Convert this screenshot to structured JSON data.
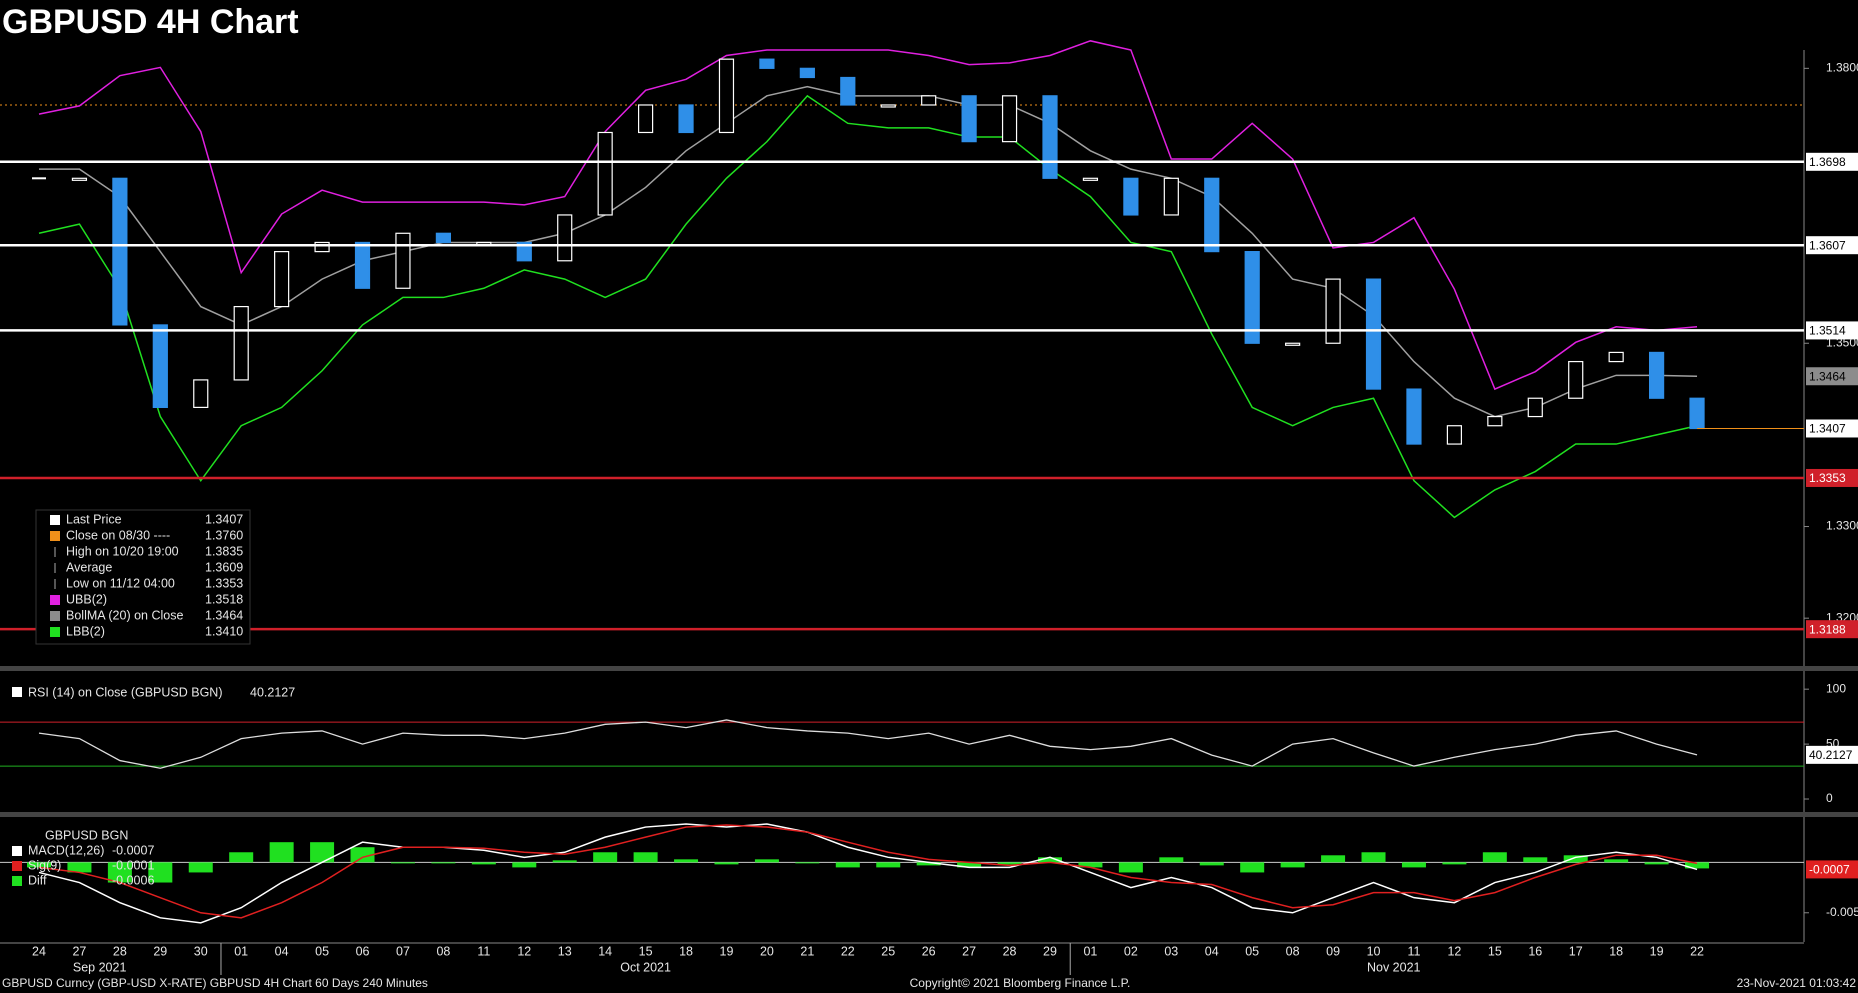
{
  "chart_data": [
    {
      "type": "candlestick",
      "title": "GBPUSD 4H Chart",
      "categories": [
        "24",
        "27",
        "28",
        "29",
        "30",
        "01",
        "04",
        "05",
        "06",
        "07",
        "08",
        "11",
        "12",
        "13",
        "14",
        "15",
        "18",
        "19",
        "20",
        "21",
        "22",
        "25",
        "26",
        "27",
        "28",
        "29",
        "01",
        "02",
        "03",
        "04",
        "05",
        "08",
        "09",
        "10",
        "11",
        "12",
        "15",
        "16",
        "17",
        "18",
        "19",
        "22"
      ],
      "values": [
        1.368,
        1.368,
        1.352,
        1.343,
        1.346,
        1.354,
        1.36,
        1.361,
        1.356,
        1.362,
        1.361,
        1.361,
        1.359,
        1.364,
        1.373,
        1.376,
        1.373,
        1.381,
        1.38,
        1.379,
        1.376,
        1.376,
        1.377,
        1.372,
        1.377,
        1.368,
        1.368,
        1.364,
        1.368,
        1.36,
        1.35,
        1.35,
        1.357,
        1.345,
        1.339,
        1.341,
        1.342,
        1.344,
        1.348,
        1.349,
        1.344,
        1.3407
      ],
      "up_color": "#ffffff",
      "down_color": "#2f8fe8",
      "bands": [
        {
          "color": "#e020e0",
          "values": [
            1.375,
            1.3759,
            1.3792,
            1.3801,
            1.3731,
            1.3577,
            1.3641,
            1.3667,
            1.3654,
            1.3654,
            1.3654,
            1.3654,
            1.3651,
            1.366,
            1.3731,
            1.3776,
            1.3788,
            1.3814,
            1.382,
            1.382,
            1.382,
            1.382,
            1.3814,
            1.3804,
            1.3806,
            1.3814,
            1.383,
            1.382,
            1.3701,
            1.3701,
            1.374,
            1.3701,
            1.3604,
            1.361,
            1.3637,
            1.3559,
            1.345,
            1.3469,
            1.3501,
            1.3518,
            1.3514,
            1.3518
          ]
        },
        {
          "color": "#a0a0a0",
          "values": [
            1.369,
            1.369,
            1.366,
            1.36,
            1.354,
            1.352,
            1.354,
            1.357,
            1.359,
            1.36,
            1.361,
            1.361,
            1.361,
            1.362,
            1.364,
            1.367,
            1.371,
            1.374,
            1.377,
            1.378,
            1.377,
            1.377,
            1.377,
            1.376,
            1.376,
            1.374,
            1.371,
            1.369,
            1.368,
            1.366,
            1.362,
            1.357,
            1.356,
            1.353,
            1.348,
            1.344,
            1.342,
            1.343,
            1.345,
            1.3465,
            1.3465,
            1.3464
          ]
        },
        {
          "color": "#20e020",
          "values": [
            1.362,
            1.363,
            1.356,
            1.342,
            1.335,
            1.341,
            1.343,
            1.347,
            1.352,
            1.355,
            1.355,
            1.356,
            1.358,
            1.357,
            1.355,
            1.357,
            1.363,
            1.368,
            1.372,
            1.377,
            1.374,
            1.3735,
            1.3735,
            1.3725,
            1.3725,
            1.369,
            1.366,
            1.361,
            1.36,
            1.351,
            1.343,
            1.341,
            1.343,
            1.344,
            1.335,
            1.331,
            1.334,
            1.336,
            1.339,
            1.339,
            1.34,
            1.341
          ]
        }
      ],
      "ylim": [
        1.315,
        1.382
      ],
      "yticks": [
        {
          "value": 1.32,
          "label": "1.3200"
        },
        {
          "value": 1.33,
          "label": "1.3300"
        },
        {
          "value": 1.35,
          "label": "1.3500"
        },
        {
          "value": 1.38,
          "label": "1.3800"
        }
      ],
      "levels": [
        {
          "value": 1.3698,
          "color": "#ffffff"
        },
        {
          "value": 1.3607,
          "color": "#ffffff"
        },
        {
          "value": 1.3514,
          "color": "#ffffff"
        },
        {
          "value": 1.3353,
          "color": "#d0202a"
        },
        {
          "value": 1.3188,
          "color": "#d0202a"
        }
      ],
      "reference_line": {
        "value": 1.376,
        "color": "#f0901a"
      },
      "markers": [
        {
          "value": 1.3464,
          "color": "#8c8c8c"
        },
        {
          "value": 1.3407,
          "color": "#ffffff"
        }
      ],
      "legend": [
        {
          "label": "Last Price",
          "value": "1.3407",
          "color": "#ffffff"
        },
        {
          "label": "Close on 08/30 ----",
          "value": "1.3760",
          "color": "#f0901a"
        },
        {
          "label": "High on 10/20 19:00",
          "value": "1.3835"
        },
        {
          "label": "Average",
          "value": "1.3609"
        },
        {
          "label": "Low on 11/12 04:00",
          "value": "1.3353"
        },
        {
          "label": "UBB(2)",
          "value": "1.3518",
          "color": "#e020e0"
        },
        {
          "label": "BollMA (20)  on Close",
          "value": "1.3464",
          "color": "#8c8c8c"
        },
        {
          "label": "LBB(2)",
          "value": "1.3410",
          "color": "#20e020"
        }
      ],
      "month_labels": [
        "Sep 2021",
        "Oct 2021",
        "Nov 2021"
      ]
    },
    {
      "type": "line",
      "title": "RSI (14)  on Close (GBPUSD BGN)",
      "series": [
        {
          "color": "#dddddd",
          "values": [
            60,
            55,
            35,
            28,
            38,
            55,
            60,
            62,
            50,
            60,
            58,
            58,
            55,
            60,
            68,
            70,
            65,
            72,
            65,
            62,
            60,
            55,
            60,
            50,
            58,
            48,
            45,
            48,
            55,
            40,
            30,
            50,
            55,
            42,
            30,
            38,
            45,
            50,
            58,
            62,
            50,
            40.2127
          ]
        }
      ],
      "ylim": [
        -10,
        112
      ],
      "yticks": [
        0,
        50,
        100
      ],
      "levels": [
        {
          "value": 70,
          "color": "#d0202a"
        },
        {
          "value": 30,
          "color": "#20b020"
        }
      ]
    },
    {
      "type": "macd",
      "title": "GBPUSD BGN",
      "series": [
        {
          "name": "MACD(12,26)",
          "color": "#ffffff",
          "values": [
            -0.001,
            -0.002,
            -0.004,
            -0.0055,
            -0.006,
            -0.0045,
            -0.002,
            0,
            0.002,
            0.0015,
            0.0015,
            0.0012,
            0.0005,
            0.001,
            0.0025,
            0.0035,
            0.0038,
            0.0035,
            0.0038,
            0.003,
            0.0015,
            0.0005,
            0,
            -0.0005,
            -0.0005,
            0.0005,
            -0.001,
            -0.0025,
            -0.0015,
            -0.0025,
            -0.0045,
            -0.005,
            -0.0035,
            -0.002,
            -0.0035,
            -0.004,
            -0.002,
            -0.001,
            0.0005,
            0.001,
            0.0005,
            -0.0007
          ]
        },
        {
          "name": "Sig(9)",
          "color": "#e02020",
          "values": [
            -0.0005,
            -0.001,
            -0.002,
            -0.0035,
            -0.005,
            -0.0055,
            -0.004,
            -0.002,
            0.0005,
            0.0015,
            0.0015,
            0.0014,
            0.001,
            0.0008,
            0.0015,
            0.0025,
            0.0035,
            0.0037,
            0.0035,
            0.003,
            0.002,
            0.001,
            0.0003,
            0,
            -0.0003,
            0,
            -0.0005,
            -0.0015,
            -0.002,
            -0.0022,
            -0.0035,
            -0.0045,
            -0.0042,
            -0.003,
            -0.003,
            -0.0038,
            -0.003,
            -0.0015,
            -0.0002,
            0.0007,
            0.0007,
            -0.0001
          ]
        },
        {
          "name": "Diff",
          "color": "#20e020",
          "style": "bar",
          "values": [
            -0.0005,
            -0.001,
            -0.002,
            -0.002,
            -0.001,
            0.001,
            0.002,
            0.002,
            0.0015,
            0,
            0,
            -0.0002,
            -0.0005,
            0.0002,
            0.001,
            0.001,
            0.0003,
            -0.0002,
            0.0003,
            0,
            -0.0005,
            -0.0005,
            -0.0003,
            -0.0005,
            -0.0002,
            0.0005,
            -0.0005,
            -0.001,
            0.0005,
            -0.0003,
            -0.001,
            -0.0005,
            0.0007,
            0.001,
            -0.0005,
            -0.0002,
            0.001,
            0.0005,
            0.0007,
            0.0003,
            -0.0002,
            -0.0006
          ]
        }
      ],
      "ylim": [
        -0.0077,
        0.0042
      ],
      "yticks": [
        -0.005
      ],
      "zero_line": 0
    }
  ],
  "footer": {
    "left": "GBPUSD Curncy (GBP-USD X-RATE) GBPUSD 4H Chart 60 Days 240 Minutes",
    "center": "Copyright© 2021 Bloomberg Finance L.P.",
    "right": "23-Nov-2021 01:03:42"
  }
}
